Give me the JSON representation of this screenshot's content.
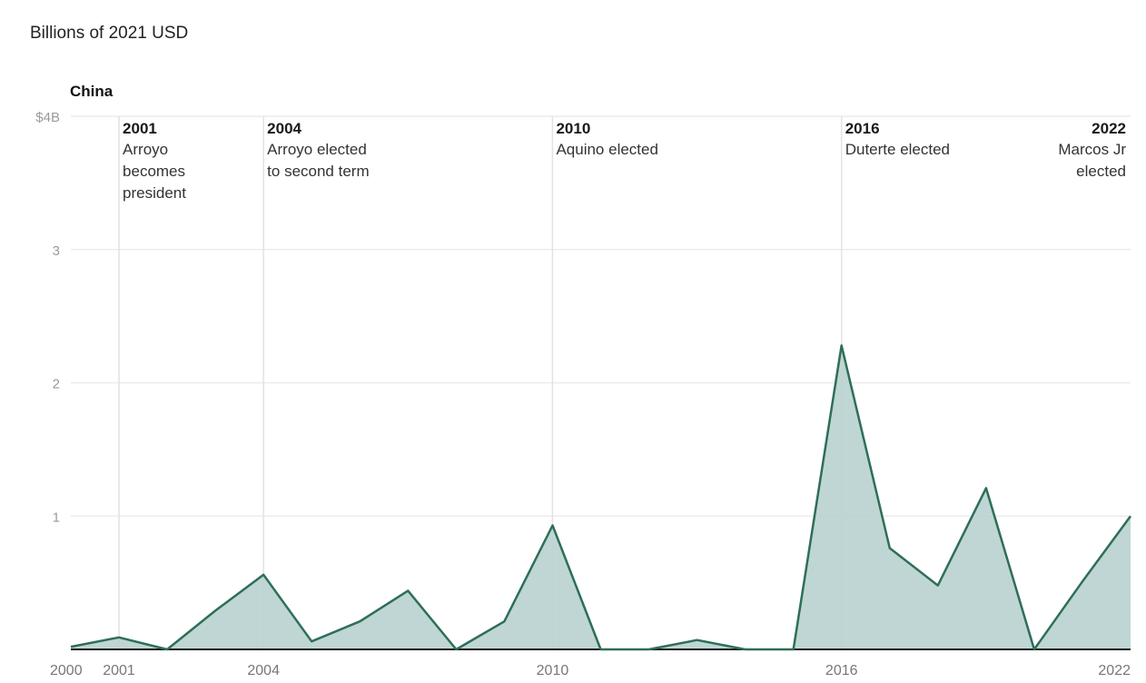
{
  "chart_data": {
    "type": "area",
    "subtitle": "Billions of 2021 USD",
    "series_title": "China",
    "y_ticks": [
      {
        "value": 4,
        "label": "$4B"
      },
      {
        "value": 3,
        "label": "3"
      },
      {
        "value": 2,
        "label": "2"
      },
      {
        "value": 1,
        "label": "1"
      }
    ],
    "ylim": [
      0,
      4
    ],
    "xlim": [
      2000,
      2022
    ],
    "x_ticks": [
      {
        "value": 2000,
        "label": "2000"
      },
      {
        "value": 2001,
        "label": "2001"
      },
      {
        "value": 2004,
        "label": "2004"
      },
      {
        "value": 2010,
        "label": "2010"
      },
      {
        "value": 2016,
        "label": "2016"
      },
      {
        "value": 2022,
        "label": "2022"
      }
    ],
    "series": [
      {
        "x": [
          2000,
          2001,
          2002,
          2003,
          2004,
          2005,
          2006,
          2007,
          2008,
          2009,
          2010,
          2011,
          2012,
          2013,
          2014,
          2015,
          2016,
          2017,
          2018,
          2019,
          2020,
          2021,
          2022
        ],
        "values": [
          0.02,
          0.09,
          0.0,
          0.29,
          0.56,
          0.06,
          0.21,
          0.44,
          0.0,
          0.21,
          0.93,
          0.0,
          0.0,
          0.07,
          0.0,
          0.0,
          2.28,
          0.76,
          0.48,
          1.21,
          0.0,
          0.51,
          1.0
        ]
      }
    ],
    "annotations": [
      {
        "year": 2001,
        "year_label": "2001",
        "lines": [
          "Arroyo",
          "becomes",
          "president"
        ],
        "align": "left"
      },
      {
        "year": 2004,
        "year_label": "2004",
        "lines": [
          "Arroyo elected",
          "to second term"
        ],
        "align": "left"
      },
      {
        "year": 2010,
        "year_label": "2010",
        "lines": [
          "Aquino elected"
        ],
        "align": "left"
      },
      {
        "year": 2016,
        "year_label": "2016",
        "lines": [
          "Duterte elected"
        ],
        "align": "left"
      },
      {
        "year": 2022,
        "year_label": "2022",
        "lines": [
          "Marcos Jr",
          "elected"
        ],
        "align": "right"
      }
    ],
    "colors": {
      "line": "#2e6e57",
      "fill": "#b8d1cf",
      "grid": "#ececec",
      "annotation_line": "#e3e3e3",
      "baseline": "#1a1a1a"
    }
  }
}
